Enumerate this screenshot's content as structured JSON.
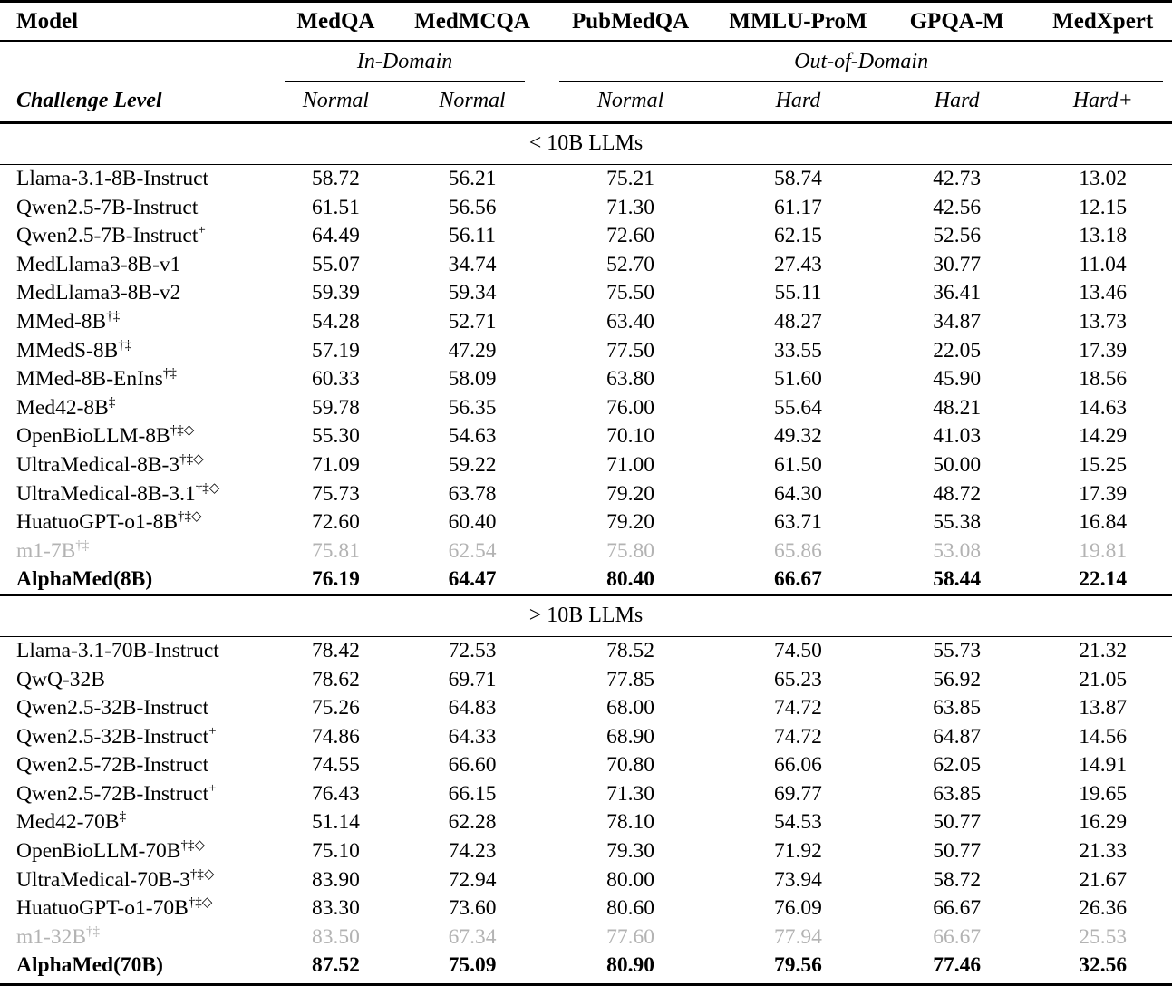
{
  "table": {
    "columns": [
      "Model",
      "MedQA",
      "MedMCQA",
      "PubMedQA",
      "MMLU-ProM",
      "GPQA-M",
      "MedXpert"
    ],
    "domain_groups": {
      "in_domain": "In-Domain",
      "out_of_domain": "Out-of-Domain"
    },
    "challenge_row": {
      "label": "Challenge Level",
      "levels": [
        "Normal",
        "Normal",
        "Normal",
        "Hard",
        "Hard",
        "Hard+"
      ]
    },
    "colors": {
      "text": "#000000",
      "muted_row": "#b3b3b3"
    },
    "sections": [
      {
        "title": "< 10B LLMs",
        "rows": [
          {
            "model": "Llama-3.1-8B-Instruct",
            "sup": "",
            "style": "normal",
            "values": [
              "58.72",
              "56.21",
              "75.21",
              "58.74",
              "42.73",
              "13.02"
            ]
          },
          {
            "model": "Qwen2.5-7B-Instruct",
            "sup": "",
            "style": "normal",
            "values": [
              "61.51",
              "56.56",
              "71.30",
              "61.17",
              "42.56",
              "12.15"
            ]
          },
          {
            "model": "Qwen2.5-7B-Instruct",
            "sup": "+",
            "style": "normal",
            "values": [
              "64.49",
              "56.11",
              "72.60",
              "62.15",
              "52.56",
              "13.18"
            ]
          },
          {
            "model": "MedLlama3-8B-v1",
            "sup": "",
            "style": "normal",
            "values": [
              "55.07",
              "34.74",
              "52.70",
              "27.43",
              "30.77",
              "11.04"
            ]
          },
          {
            "model": "MedLlama3-8B-v2",
            "sup": "",
            "style": "normal",
            "values": [
              "59.39",
              "59.34",
              "75.50",
              "55.11",
              "36.41",
              "13.46"
            ]
          },
          {
            "model": "MMed-8B",
            "sup": "†‡",
            "style": "normal",
            "values": [
              "54.28",
              "52.71",
              "63.40",
              "48.27",
              "34.87",
              "13.73"
            ]
          },
          {
            "model": "MMedS-8B",
            "sup": "†‡",
            "style": "normal",
            "values": [
              "57.19",
              "47.29",
              "77.50",
              "33.55",
              "22.05",
              "17.39"
            ]
          },
          {
            "model": "MMed-8B-EnIns",
            "sup": "†‡",
            "style": "normal",
            "values": [
              "60.33",
              "58.09",
              "63.80",
              "51.60",
              "45.90",
              "18.56"
            ]
          },
          {
            "model": "Med42-8B",
            "sup": "‡",
            "style": "normal",
            "values": [
              "59.78",
              "56.35",
              "76.00",
              "55.64",
              "48.21",
              "14.63"
            ]
          },
          {
            "model": "OpenBioLLM-8B",
            "sup": "†‡◇",
            "style": "normal",
            "values": [
              "55.30",
              "54.63",
              "70.10",
              "49.32",
              "41.03",
              "14.29"
            ]
          },
          {
            "model": "UltraMedical-8B-3",
            "sup": "†‡◇",
            "style": "normal",
            "values": [
              "71.09",
              "59.22",
              "71.00",
              "61.50",
              "50.00",
              "15.25"
            ]
          },
          {
            "model": "UltraMedical-8B-3.1",
            "sup": "†‡◇",
            "style": "normal",
            "values": [
              "75.73",
              "63.78",
              "79.20",
              "64.30",
              "48.72",
              "17.39"
            ]
          },
          {
            "model": "HuatuoGPT-o1-8B",
            "sup": "†‡◇",
            "style": "normal",
            "values": [
              "72.60",
              "60.40",
              "79.20",
              "63.71",
              "55.38",
              "16.84"
            ]
          },
          {
            "model": "m1-7B",
            "sup": "†‡",
            "style": "muted",
            "values": [
              "75.81",
              "62.54",
              "75.80",
              "65.86",
              "53.08",
              "19.81"
            ]
          },
          {
            "model": "AlphaMed(8B)",
            "sup": "",
            "style": "bold",
            "values": [
              "76.19",
              "64.47",
              "80.40",
              "66.67",
              "58.44",
              "22.14"
            ]
          }
        ]
      },
      {
        "title": "> 10B LLMs",
        "rows": [
          {
            "model": "Llama-3.1-70B-Instruct",
            "sup": "",
            "style": "normal",
            "values": [
              "78.42",
              "72.53",
              "78.52",
              "74.50",
              "55.73",
              "21.32"
            ]
          },
          {
            "model": "QwQ-32B",
            "sup": "",
            "style": "normal",
            "values": [
              "78.62",
              "69.71",
              "77.85",
              "65.23",
              "56.92",
              "21.05"
            ]
          },
          {
            "model": "Qwen2.5-32B-Instruct",
            "sup": "",
            "style": "normal",
            "values": [
              "75.26",
              "64.83",
              "68.00",
              "74.72",
              "63.85",
              "13.87"
            ]
          },
          {
            "model": "Qwen2.5-32B-Instruct",
            "sup": "+",
            "style": "normal",
            "values": [
              "74.86",
              "64.33",
              "68.90",
              "74.72",
              "64.87",
              "14.56"
            ]
          },
          {
            "model": "Qwen2.5-72B-Instruct",
            "sup": "",
            "style": "normal",
            "values": [
              "74.55",
              "66.60",
              "70.80",
              "66.06",
              "62.05",
              "14.91"
            ]
          },
          {
            "model": "Qwen2.5-72B-Instruct",
            "sup": "+",
            "style": "normal",
            "values": [
              "76.43",
              "66.15",
              "71.30",
              "69.77",
              "63.85",
              "19.65"
            ]
          },
          {
            "model": "Med42-70B",
            "sup": "‡",
            "style": "normal",
            "values": [
              "51.14",
              "62.28",
              "78.10",
              "54.53",
              "50.77",
              "16.29"
            ]
          },
          {
            "model": "OpenBioLLM-70B",
            "sup": "†‡◇",
            "style": "normal",
            "values": [
              "75.10",
              "74.23",
              "79.30",
              "71.92",
              "50.77",
              "21.33"
            ]
          },
          {
            "model": "UltraMedical-70B-3",
            "sup": "†‡◇",
            "style": "normal",
            "values": [
              "83.90",
              "72.94",
              "80.00",
              "73.94",
              "58.72",
              "21.67"
            ]
          },
          {
            "model": "HuatuoGPT-o1-70B",
            "sup": "†‡◇",
            "style": "normal",
            "values": [
              "83.30",
              "73.60",
              "80.60",
              "76.09",
              "66.67",
              "26.36"
            ]
          },
          {
            "model": "m1-32B",
            "sup": "†‡",
            "style": "muted",
            "values": [
              "83.50",
              "67.34",
              "77.60",
              "77.94",
              "66.67",
              "25.53"
            ]
          },
          {
            "model": "AlphaMed(70B)",
            "sup": "",
            "style": "bold",
            "values": [
              "87.52",
              "75.09",
              "80.90",
              "79.56",
              "77.46",
              "32.56"
            ]
          }
        ]
      }
    ]
  }
}
